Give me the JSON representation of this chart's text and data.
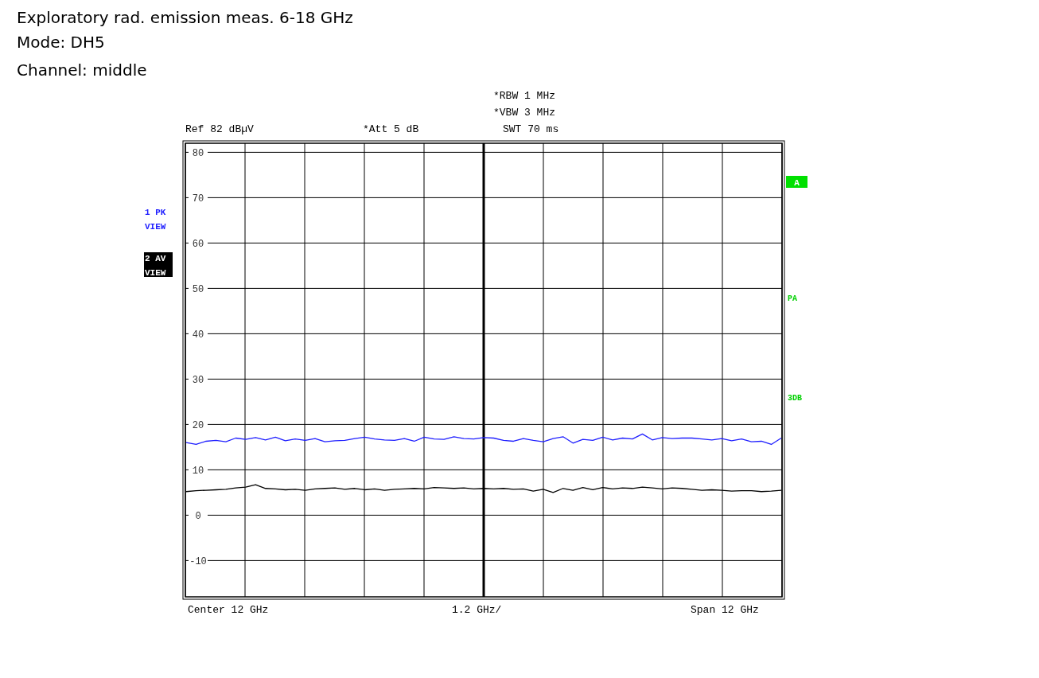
{
  "chart_data": {
    "type": "line",
    "title": "Exploratory rad. emission meas. 6-18 GHz",
    "annotations": [
      "Mode: DH5",
      "Channel: middle",
      "*RBW 1 MHz",
      "*VBW 3 MHz",
      "Ref 82 dBµV",
      "*Att 5 dB",
      "SWT 70 ms",
      "Center 12 GHz",
      "1.2 GHz/",
      "Span 12 GHz",
      "A",
      "PA",
      "3DB"
    ],
    "categories": [
      null,
      null,
      null,
      null,
      null,
      null,
      null,
      null,
      null,
      null,
      null,
      null,
      null,
      null,
      null,
      null,
      null,
      null,
      null,
      null,
      null,
      null,
      null,
      null,
      null,
      null,
      null,
      null,
      null,
      null,
      null,
      null,
      null,
      null,
      null,
      null,
      null,
      null,
      null,
      null,
      null,
      null,
      null,
      null,
      null,
      null,
      null,
      null,
      null,
      null,
      null,
      null,
      null,
      null,
      null,
      null,
      null,
      null,
      null,
      null,
      null
    ],
    "series": [
      {
        "name": "1 PK VIEW",
        "color": "#1f1fff",
        "values": [
          16.0,
          15.6,
          16.3,
          16.5,
          16.2,
          17.0,
          16.7,
          17.1,
          16.6,
          17.2,
          16.4,
          16.8,
          16.5,
          16.9,
          16.2,
          16.4,
          16.5,
          16.9,
          17.2,
          16.8,
          16.6,
          16.5,
          16.9,
          16.3,
          17.2,
          16.8,
          16.7,
          17.3,
          16.9,
          16.8,
          17.1,
          17.0,
          16.5,
          16.3,
          16.9,
          16.5,
          16.2,
          16.9,
          17.3,
          15.9,
          16.7,
          16.5,
          17.2,
          16.6,
          17.0,
          16.8,
          17.9,
          16.6,
          17.1,
          16.9,
          17.0,
          17.0,
          16.8,
          16.6,
          16.9,
          16.4,
          16.8,
          16.2,
          16.3,
          15.6,
          17.0
        ]
      },
      {
        "name": "2 AV VIEW",
        "color": "#000000",
        "values": [
          5.2,
          5.4,
          5.5,
          5.6,
          5.7,
          6.0,
          6.2,
          6.7,
          5.9,
          5.8,
          5.6,
          5.7,
          5.5,
          5.8,
          5.9,
          6.0,
          5.7,
          5.9,
          5.6,
          5.8,
          5.5,
          5.7,
          5.8,
          5.9,
          5.8,
          6.1,
          6.0,
          5.9,
          6.0,
          5.8,
          5.9,
          5.8,
          5.9,
          5.7,
          5.8,
          5.3,
          5.7,
          5.0,
          5.9,
          5.5,
          6.1,
          5.6,
          6.1,
          5.8,
          6.0,
          5.9,
          6.2,
          6.0,
          5.8,
          6.0,
          5.9,
          5.7,
          5.5,
          5.6,
          5.5,
          5.3,
          5.4,
          5.4,
          5.2,
          5.3,
          5.5
        ]
      }
    ],
    "ylim": [
      -18,
      82
    ],
    "yticks": [
      -10,
      0,
      10,
      20,
      30,
      40,
      50,
      60,
      70,
      80
    ],
    "tick_labels": "y",
    "grid": true,
    "marker": "none",
    "line_style": "solid"
  }
}
